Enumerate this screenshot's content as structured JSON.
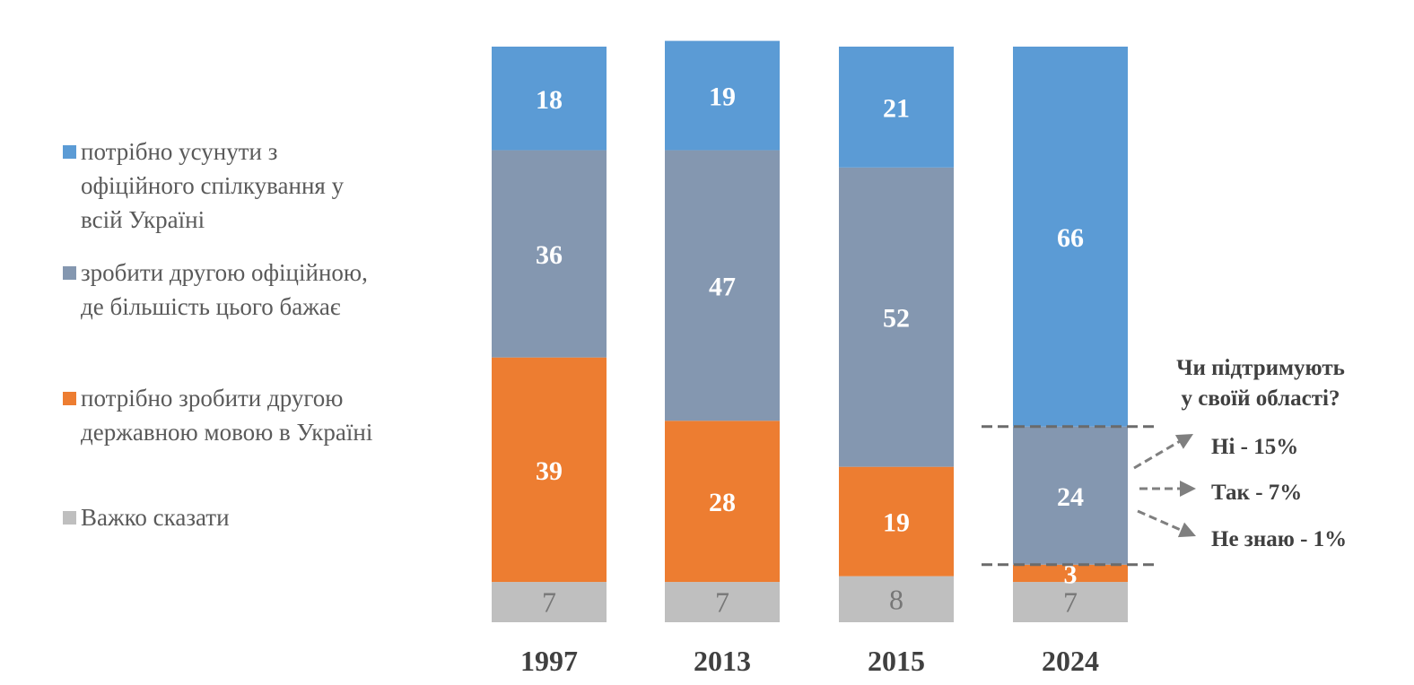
{
  "chart_data": {
    "type": "bar",
    "stacked": true,
    "title": "",
    "xlabel": "",
    "ylabel": "",
    "ylim": [
      0,
      100
    ],
    "grid": false,
    "legend_position": "left",
    "categories": [
      "1997",
      "2013",
      "2015",
      "2024"
    ],
    "series": [
      {
        "name": "потрібно усунути з офіційного спілкування у всій Україні",
        "label_lines": [
          "потрібно усунути з",
          "офіційного спілкування у",
          "всій Україні"
        ],
        "color": "#5b9bd5",
        "values": [
          18,
          19,
          21,
          66
        ]
      },
      {
        "name": "зробити другою офіційною, де більшість цього бажає",
        "label_lines": [
          "зробити другою офіційною,",
          "де більшість цього бажає"
        ],
        "color": "#8497b0",
        "values": [
          36,
          47,
          52,
          24
        ]
      },
      {
        "name": "потрібно зробити другою державною мовою в Україні",
        "label_lines": [
          "потрібно зробити другою",
          "державною мовою в Україні"
        ],
        "color": "#ed7d31",
        "values": [
          39,
          28,
          19,
          3
        ]
      },
      {
        "name": "Важко сказати",
        "label_lines": [
          "Важко сказати"
        ],
        "color": "#bfbfbf",
        "values": [
          7,
          7,
          8,
          7
        ]
      }
    ],
    "annotation": {
      "question_lines": [
        "Чи підтримують",
        "у своїй області?"
      ],
      "applies_to": {
        "category": "2024",
        "series": "зробити другою офіційною, де більшість цього бажає"
      },
      "items": [
        {
          "label": "Ні - 15%",
          "value": 15
        },
        {
          "label": "Так - 7%",
          "value": 7
        },
        {
          "label": "Не знаю - 1%",
          "value": 1
        }
      ]
    }
  }
}
